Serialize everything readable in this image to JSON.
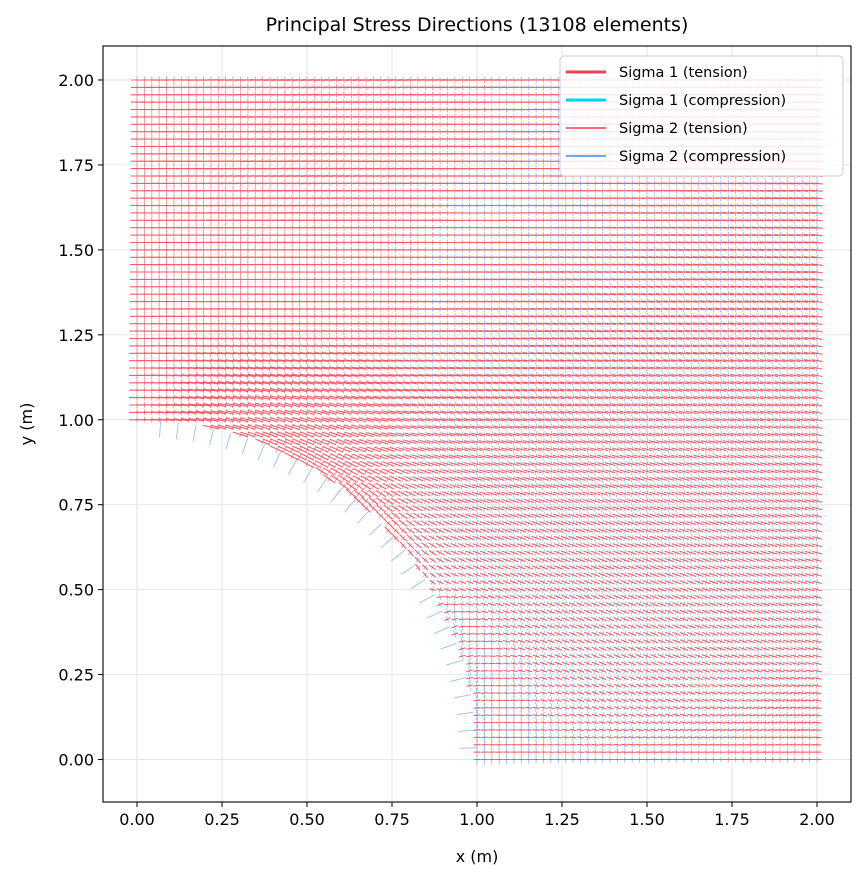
{
  "chart_data": {
    "type": "quiver",
    "title": "Principal Stress Directions (13108 elements)",
    "xlabel": "x (m)",
    "ylabel": "y (m)",
    "xlim": [
      -0.1,
      2.1
    ],
    "ylim": [
      -0.125,
      2.1
    ],
    "xticks": [
      0.0,
      0.25,
      0.5,
      0.75,
      1.0,
      1.25,
      1.5,
      1.75,
      2.0
    ],
    "xtick_labels": [
      "0.00",
      "0.25",
      "0.50",
      "0.75",
      "1.00",
      "1.25",
      "1.50",
      "1.75",
      "2.00"
    ],
    "yticks": [
      0.0,
      0.25,
      0.5,
      0.75,
      1.0,
      1.25,
      1.5,
      1.75,
      2.0
    ],
    "ytick_labels": [
      "0.00",
      "0.25",
      "0.50",
      "0.75",
      "1.00",
      "1.25",
      "1.50",
      "1.75",
      "2.00"
    ],
    "grid": true,
    "legend_position": "upper right",
    "geometry": {
      "domain_x": [
        0.0,
        2.0
      ],
      "domain_y": [
        0.0,
        2.0
      ],
      "hole_center": [
        0.0,
        0.0
      ],
      "hole_radius": 1.0
    },
    "element_count": 13108,
    "series": [
      {
        "name": "Sigma 1 (tension)",
        "color": "#f0434f",
        "linewidth": "thick"
      },
      {
        "name": "Sigma 1 (compression)",
        "color": "#00d4f0",
        "linewidth": "thick"
      },
      {
        "name": "Sigma 2 (tension)",
        "color": "#f36b7f",
        "linewidth": "thin"
      },
      {
        "name": "Sigma 2 (compression)",
        "color": "#6fa3ee",
        "linewidth": "thin"
      }
    ]
  }
}
